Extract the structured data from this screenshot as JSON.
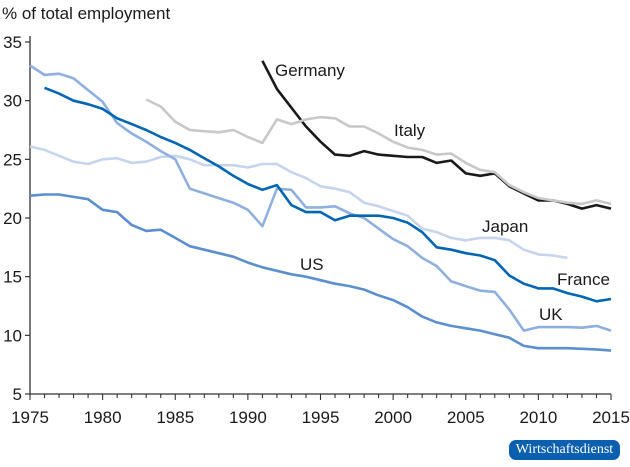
{
  "chart_data": {
    "type": "line",
    "ylabel": "% of total employment",
    "xlim": [
      1975,
      2015
    ],
    "ylim": [
      5,
      35
    ],
    "xticks": [
      1975,
      1980,
      1985,
      1990,
      1995,
      2000,
      2005,
      2010,
      2015
    ],
    "yticks": [
      5,
      10,
      15,
      20,
      25,
      30,
      35
    ],
    "grid": false,
    "legend": "inline labels",
    "series": [
      {
        "name": "Germany",
        "color": "#1a1a1a",
        "start": 1991,
        "values": [
          33.4,
          31.0,
          29.4,
          27.8,
          26.5,
          25.4,
          25.3,
          25.7,
          25.4,
          25.3,
          25.2,
          25.2,
          24.7,
          24.9,
          23.8,
          23.6,
          23.8,
          22.7,
          22.1,
          21.5,
          21.5,
          21.2,
          20.8,
          21.1,
          20.8
        ]
      },
      {
        "name": "Italy",
        "color": "#c8c8c8",
        "start": 1983,
        "values": [
          30.1,
          29.5,
          28.2,
          27.5,
          27.4,
          27.3,
          27.5,
          26.9,
          26.4,
          28.4,
          28.0,
          28.4,
          28.6,
          28.5,
          27.8,
          27.8,
          27.2,
          26.5,
          26.0,
          25.8,
          25.4,
          25.5,
          24.7,
          24.1,
          23.9,
          22.8,
          22.2,
          21.7,
          21.5,
          21.3,
          21.2,
          21.5,
          21.2
        ]
      },
      {
        "name": "Japan",
        "color": "#c5d5ee",
        "start": 1975,
        "values": [
          26.1,
          25.8,
          25.3,
          24.8,
          24.6,
          25.0,
          25.1,
          24.7,
          24.8,
          25.2,
          25.3,
          25.0,
          24.5,
          24.5,
          24.5,
          24.3,
          24.6,
          24.6,
          23.9,
          23.4,
          22.7,
          22.5,
          22.2,
          21.3,
          21.0,
          20.6,
          20.2,
          19.1,
          18.8,
          18.3,
          18.1,
          18.3,
          18.3,
          18.1,
          17.3,
          16.9,
          16.8,
          16.6
        ]
      },
      {
        "name": "UK",
        "color": "#8fb0de",
        "start": 1975,
        "values": [
          33.0,
          32.2,
          32.3,
          31.9,
          30.9,
          29.9,
          28.1,
          27.2,
          26.5,
          25.7,
          25.0,
          22.5,
          22.1,
          21.7,
          21.3,
          20.7,
          19.3,
          22.5,
          22.4,
          20.9,
          20.9,
          21.0,
          20.4,
          20.0,
          19.1,
          18.2,
          17.6,
          16.6,
          15.9,
          14.6,
          14.2,
          13.8,
          13.7,
          12.2,
          10.4,
          10.7,
          10.7,
          10.7,
          10.65,
          10.8,
          10.4
        ]
      },
      {
        "name": "France",
        "color": "#0066b3",
        "start": 1976,
        "values": [
          31.1,
          30.6,
          30.0,
          29.7,
          29.3,
          28.5,
          28.0,
          27.5,
          26.9,
          26.4,
          25.8,
          25.1,
          24.4,
          23.6,
          22.9,
          22.4,
          22.8,
          21.1,
          20.5,
          20.5,
          19.8,
          20.2,
          20.2,
          20.2,
          20.0,
          19.6,
          18.8,
          17.5,
          17.3,
          17.0,
          16.8,
          16.4,
          15.1,
          14.4,
          14.0,
          14.0,
          13.6,
          13.3,
          12.9,
          13.1
        ]
      },
      {
        "name": "US",
        "color": "#5b8fd0",
        "start": 1975,
        "values": [
          21.9,
          22.0,
          22.0,
          21.8,
          21.6,
          20.7,
          20.5,
          19.4,
          18.9,
          19.0,
          18.3,
          17.6,
          17.3,
          17.0,
          16.7,
          16.2,
          15.8,
          15.5,
          15.2,
          15.0,
          14.7,
          14.4,
          14.2,
          13.9,
          13.4,
          13.0,
          12.4,
          11.6,
          11.1,
          10.8,
          10.6,
          10.4,
          10.1,
          9.8,
          9.1,
          8.9,
          8.9,
          8.9,
          8.85,
          8.8,
          8.7
        ]
      }
    ]
  },
  "branding": {
    "publisher": "Wirtschaftsdienst"
  }
}
